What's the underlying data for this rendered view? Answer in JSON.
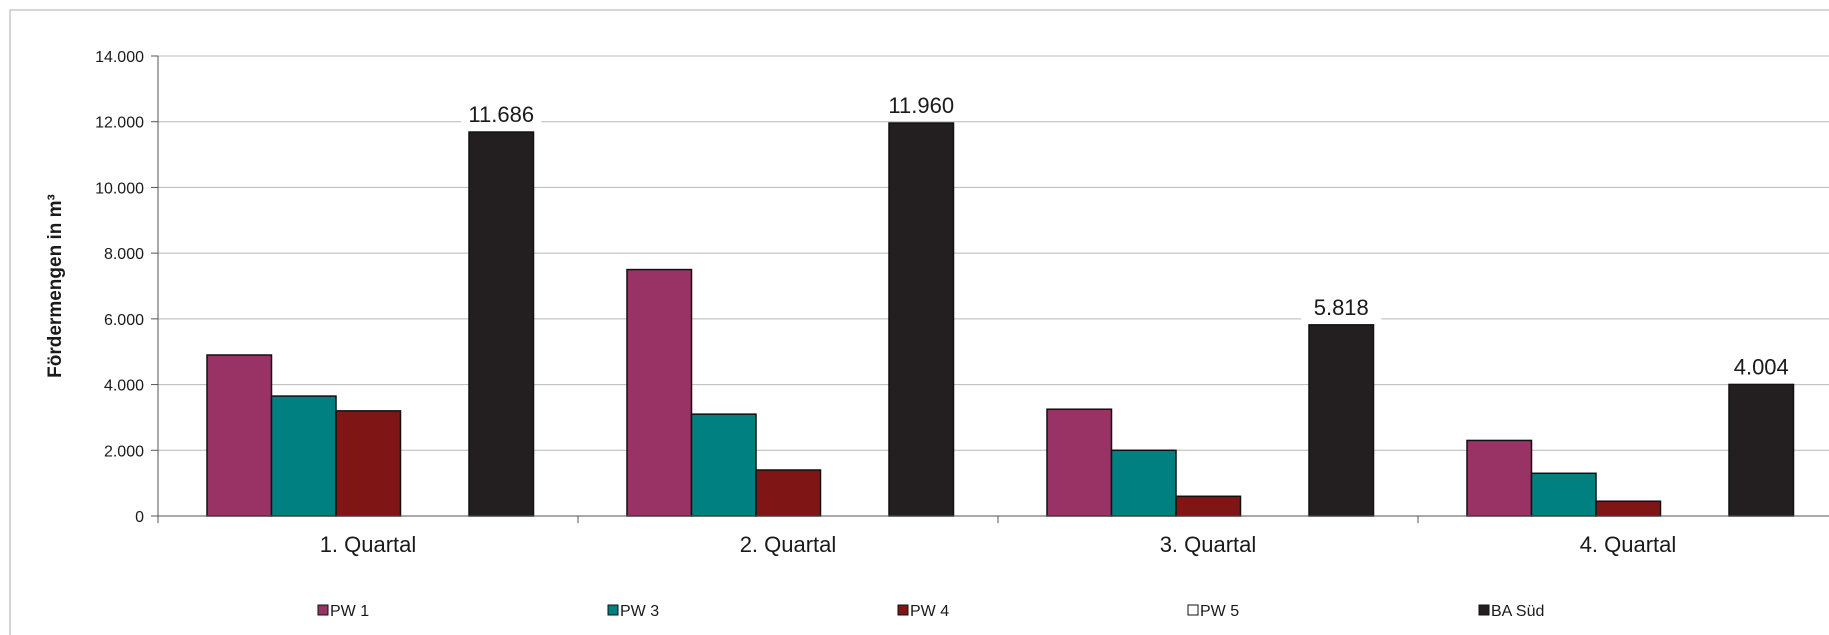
{
  "chart_data": {
    "type": "bar",
    "title": "",
    "xlabel": "",
    "ylabel": "Fördermengen in m³",
    "ylim": [
      0,
      14000
    ],
    "yticks": [
      "0",
      "2.000",
      "4.000",
      "6.000",
      "8.000",
      "10.000",
      "12.000",
      "14.000"
    ],
    "grid": true,
    "legend_position": "bottom",
    "categories": [
      "1. Quartal",
      "2. Quartal",
      "3. Quartal",
      "4. Quartal"
    ],
    "series": [
      {
        "name": "PW 1",
        "color": "#993366",
        "values": [
          4900,
          7500,
          3250,
          2300
        ],
        "labels": [
          "",
          "",
          "",
          ""
        ]
      },
      {
        "name": "PW 3",
        "color": "#008080",
        "values": [
          3650,
          3100,
          2000,
          1300
        ],
        "labels": [
          "",
          "",
          "",
          ""
        ]
      },
      {
        "name": "PW 4",
        "color": "#7f1515",
        "values": [
          3200,
          1400,
          600,
          450
        ],
        "labels": [
          "",
          "",
          "",
          ""
        ]
      },
      {
        "name": "PW 5",
        "color": "#ffffff",
        "values": [
          0,
          0,
          0,
          0
        ],
        "labels": [
          "",
          "",
          "",
          ""
        ]
      },
      {
        "name": "BA Süd",
        "color": "#231f20",
        "values": [
          11686,
          11960,
          5818,
          4004
        ],
        "labels": [
          "11.686",
          "11.960",
          "5.818",
          "4.004"
        ]
      }
    ]
  }
}
